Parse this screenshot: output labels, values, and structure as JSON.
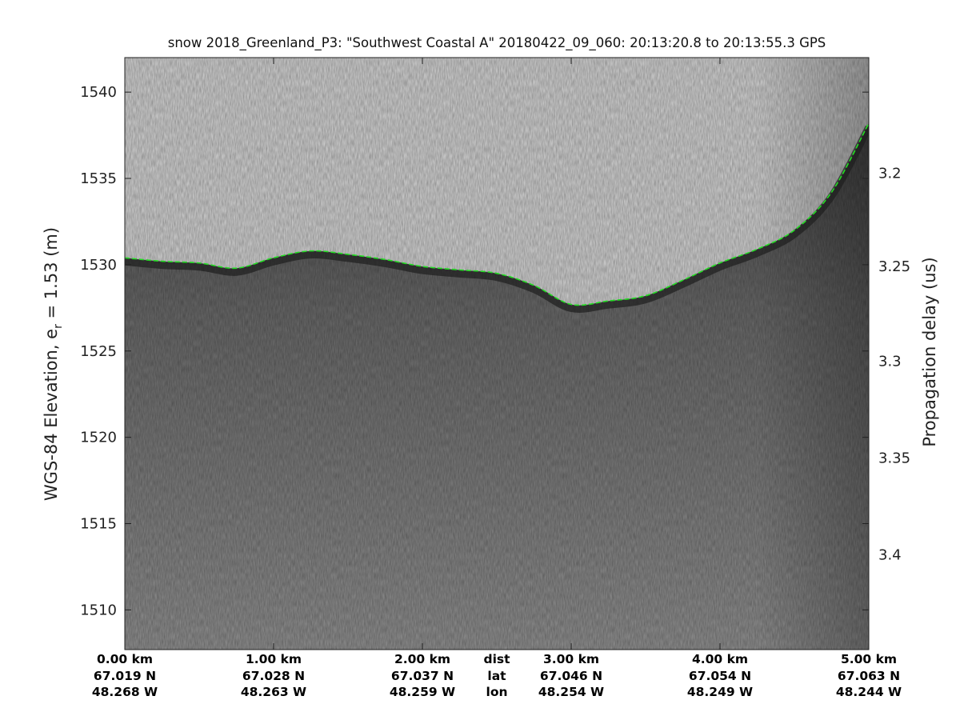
{
  "chart_data": {
    "type": "heatmap",
    "title": "snow 2018_Greenland_P3: \"Southwest Coastal A\"  20180422_09_060: 20:13:20.8 to 20:13:55.3 GPS",
    "ylabel_left_main": "WGS-84 Elevation, e",
    "ylabel_left_sub": "r",
    "ylabel_left_rest": " = 1.53 (m)",
    "ylabel_right": "Propagation delay (us)",
    "ylim": [
      1507.7,
      1542.0
    ],
    "xlim_km": [
      0.0,
      5.0
    ],
    "y_ticks": [
      1510,
      1515,
      1520,
      1525,
      1530,
      1535,
      1540
    ],
    "y_tick_labels": [
      "1510",
      "1515",
      "1520",
      "1525",
      "1530",
      "1535",
      "1540"
    ],
    "right_ticks": [
      {
        "label": "3.2",
        "elevation": 1535.3
      },
      {
        "label": "3.25",
        "elevation": 1529.9
      },
      {
        "label": "3.3",
        "elevation": 1524.4
      },
      {
        "label": "3.35",
        "elevation": 1518.8
      },
      {
        "label": "3.4",
        "elevation": 1513.2
      }
    ],
    "x_ticks": [
      {
        "km": 0.0,
        "dist": "0.00 km",
        "lat": "67.019 N",
        "lon": "48.268 W"
      },
      {
        "km": 1.0,
        "dist": "1.00 km",
        "lat": "67.028 N",
        "lon": "48.263 W"
      },
      {
        "km": 2.0,
        "dist": "2.00 km",
        "lat": "67.037 N",
        "lon": "48.259 W"
      },
      {
        "km": 3.0,
        "dist": "3.00 km",
        "lat": "67.046 N",
        "lon": "48.254 W"
      },
      {
        "km": 4.0,
        "dist": "4.00 km",
        "lat": "67.054 N",
        "lon": "48.249 W"
      },
      {
        "km": 5.0,
        "dist": "5.00 km",
        "lat": "67.063 N",
        "lon": "48.244 W"
      }
    ],
    "row_labels": {
      "dist": "dist",
      "lat": "lat",
      "lon": "lon"
    },
    "row_labels_km": 2.5,
    "surface_series": {
      "km": [
        0.0,
        0.25,
        0.5,
        0.75,
        1.0,
        1.25,
        1.5,
        1.75,
        2.0,
        2.25,
        2.5,
        2.75,
        3.0,
        3.25,
        3.5,
        3.75,
        4.0,
        4.25,
        4.5,
        4.75,
        5.0
      ],
      "elevation": [
        1530.4,
        1530.2,
        1530.1,
        1529.8,
        1530.4,
        1530.8,
        1530.6,
        1530.3,
        1529.9,
        1529.7,
        1529.5,
        1528.8,
        1527.7,
        1527.9,
        1528.2,
        1529.1,
        1530.1,
        1530.9,
        1532.0,
        1534.2,
        1538.2
      ]
    },
    "colors": {
      "surface_line": "#22dd22",
      "air": "#d4d4d4",
      "ice_near_surface": "#454545",
      "ice_deep": "#8d8d8d"
    },
    "grid": false
  }
}
